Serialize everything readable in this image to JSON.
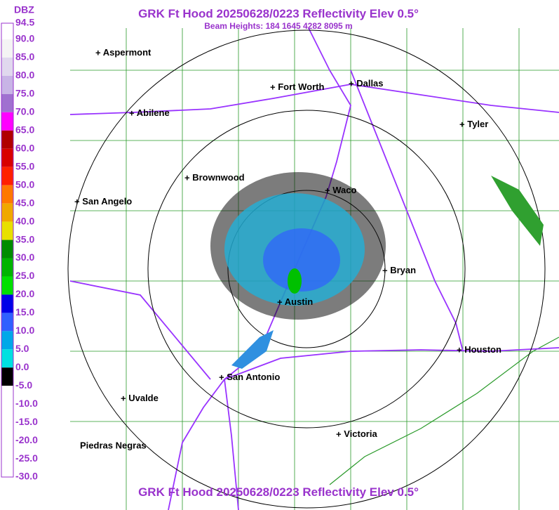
{
  "header": {
    "title": "GRK Ft Hood 20250628/0223 Reflectivity Elev 0.5°",
    "subtitle": "Beam Heights: 184 1645 4282 8095 m",
    "footer": "GRK Ft Hood 20250628/0223 Reflectivity Elev 0.5°"
  },
  "legend": {
    "unit": "DBZ",
    "labels": [
      "94.5",
      "90.0",
      "85.0",
      "80.0",
      "75.0",
      "70.0",
      "65.0",
      "60.0",
      "55.0",
      "50.0",
      "45.0",
      "40.0",
      "35.0",
      "30.0",
      "25.0",
      "20.0",
      "15.0",
      "10.0",
      "5.0",
      "0.0",
      "-5.0",
      "-10.0",
      "-15.0",
      "-20.0",
      "-25.0",
      "-30.0"
    ],
    "colors": [
      "#ffffff",
      "#f4f4f4",
      "#e0d8ee",
      "#c8b4e6",
      "#a070d0",
      "#ff00ff",
      "#b00000",
      "#d80000",
      "#ff2000",
      "#ff7800",
      "#f0a800",
      "#e8e000",
      "#008c00",
      "#00b400",
      "#00e000",
      "#0000e8",
      "#3060ff",
      "#00a8e8",
      "#00e0e0",
      "#000000",
      "#ffffff",
      "#ffffff",
      "#ffffff",
      "#ffffff",
      "#ffffff"
    ]
  },
  "cities": [
    "Aspermont",
    "Fort Worth",
    "Dallas",
    "Abilene",
    "Tyler",
    "Brownwood",
    "Waco",
    "San Angelo",
    "Bryan",
    "Austin",
    "Houston",
    "San Antonio",
    "Uvalde",
    "Victoria",
    "Piedras Negras"
  ]
}
